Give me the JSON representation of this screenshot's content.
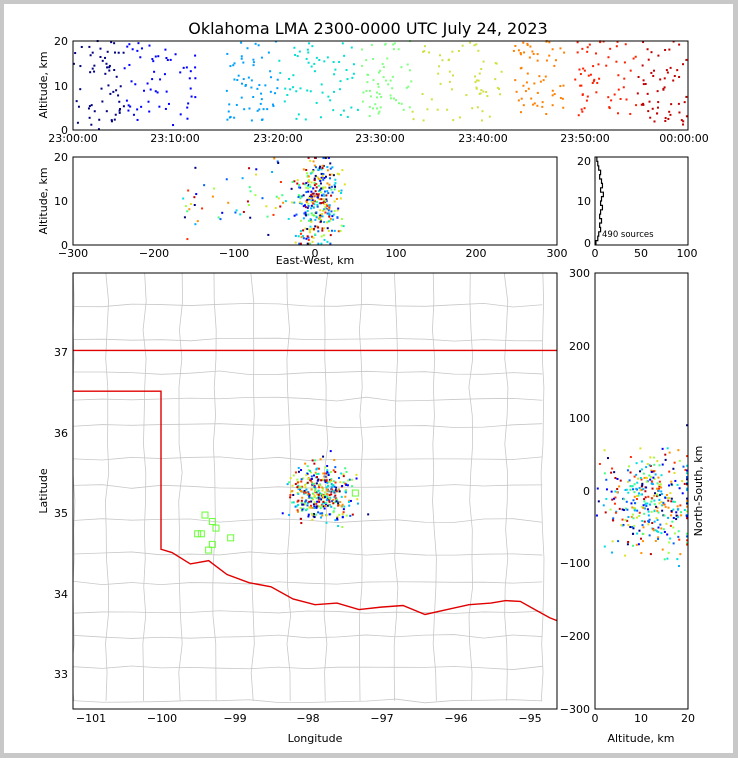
{
  "title": "Oklahoma LMA 2300-0000 UTC July 24, 2023",
  "time_panel": {
    "ylabel": "Altitude, km",
    "yticks": [
      "0",
      "10",
      "20"
    ],
    "xticks": [
      "23:00:00",
      "23:10:00",
      "23:20:00",
      "23:30:00",
      "23:40:00",
      "23:50:00",
      "00:00:00"
    ]
  },
  "ew_panel": {
    "ylabel": "Altitude, km",
    "xlabel": "East-West, km",
    "yticks": [
      "0",
      "10",
      "20"
    ],
    "xticks": [
      "−300",
      "−200",
      "−100",
      "0",
      "100",
      "200",
      "300"
    ]
  },
  "hist_panel": {
    "yticks": [
      "0",
      "10",
      "20"
    ],
    "xticks": [
      "0",
      "50",
      "100"
    ],
    "source_label": "490 sources"
  },
  "map_panel": {
    "xlabel": "Longitude",
    "ylabel": "Latitude",
    "xticks": [
      "−101",
      "−100",
      "−99",
      "−98",
      "−97",
      "−96",
      "−95"
    ],
    "yticks": [
      "33",
      "34",
      "35",
      "36",
      "37"
    ]
  },
  "ns_panel": {
    "xlabel": "Altitude, km",
    "ylabel": "North-South, km",
    "xticks": [
      "0",
      "10",
      "20"
    ],
    "yticks": [
      "−300",
      "−200",
      "−100",
      "0",
      "100",
      "200",
      "300"
    ]
  },
  "chart_data": [
    {
      "type": "scatter",
      "panel": "altitude_vs_time",
      "x_unit": "UTC time",
      "xlim": [
        "23:00:00",
        "00:00:00"
      ],
      "ylim": [
        0,
        20
      ],
      "color_encodes": "time (blue early to red late)",
      "clusters": [
        {
          "t_start": "23:00:00",
          "t_end": "23:05:00",
          "alt_range": [
            0,
            20
          ],
          "color": "#000080"
        },
        {
          "t_start": "23:05:00",
          "t_end": "23:12:00",
          "alt_range": [
            1,
            20
          ],
          "color": "#0000ff"
        },
        {
          "t_start": "23:15:00",
          "t_end": "23:20:00",
          "alt_range": [
            2,
            20
          ],
          "color": "#00a0ff"
        },
        {
          "t_start": "23:20:00",
          "t_end": "23:28:00",
          "alt_range": [
            2,
            20
          ],
          "color": "#00e0d0"
        },
        {
          "t_start": "23:28:00",
          "t_end": "23:33:00",
          "alt_range": [
            3,
            20
          ],
          "color": "#80ff80"
        },
        {
          "t_start": "23:33:00",
          "t_end": "23:42:00",
          "alt_range": [
            2,
            20
          ],
          "color": "#d0e040"
        },
        {
          "t_start": "23:43:00",
          "t_end": "23:48:00",
          "alt_range": [
            3,
            20
          ],
          "color": "#ff8000"
        },
        {
          "t_start": "23:49:00",
          "t_end": "23:55:00",
          "alt_range": [
            3,
            20
          ],
          "color": "#ff2000"
        },
        {
          "t_start": "23:55:00",
          "t_end": "00:00:00",
          "alt_range": [
            1,
            20
          ],
          "color": "#c00000"
        }
      ]
    },
    {
      "type": "scatter",
      "panel": "altitude_vs_east_west",
      "xlim": [
        -300,
        300
      ],
      "ylim": [
        0,
        20
      ],
      "cluster_center_km": 5,
      "cluster_spread_km": 40,
      "alt_range": [
        0,
        20
      ]
    },
    {
      "type": "histogram",
      "panel": "sources_by_altitude",
      "xlim": [
        0,
        100
      ],
      "ylim": [
        0,
        20
      ],
      "total_sources": 490
    },
    {
      "type": "scatter",
      "panel": "plan_view_map",
      "xlim": [
        -101.2,
        -94.6
      ],
      "ylim": [
        32.6,
        37.95
      ],
      "main_cluster_lon": -97.8,
      "main_cluster_lat": 35.25,
      "station_markers": [
        [
          -99.4,
          34.98
        ],
        [
          -99.3,
          34.9
        ],
        [
          -99.25,
          34.82
        ],
        [
          -99.45,
          34.75
        ],
        [
          -99.05,
          34.7
        ],
        [
          -99.3,
          34.62
        ],
        [
          -99.35,
          34.55
        ],
        [
          -99.5,
          34.75
        ],
        [
          -97.35,
          35.25
        ]
      ]
    },
    {
      "type": "scatter",
      "panel": "north_south_vs_altitude",
      "xlim": [
        0,
        20
      ],
      "ylim": [
        -300,
        300
      ],
      "cluster_center_km": -10,
      "cluster_spread_km": 40
    }
  ]
}
